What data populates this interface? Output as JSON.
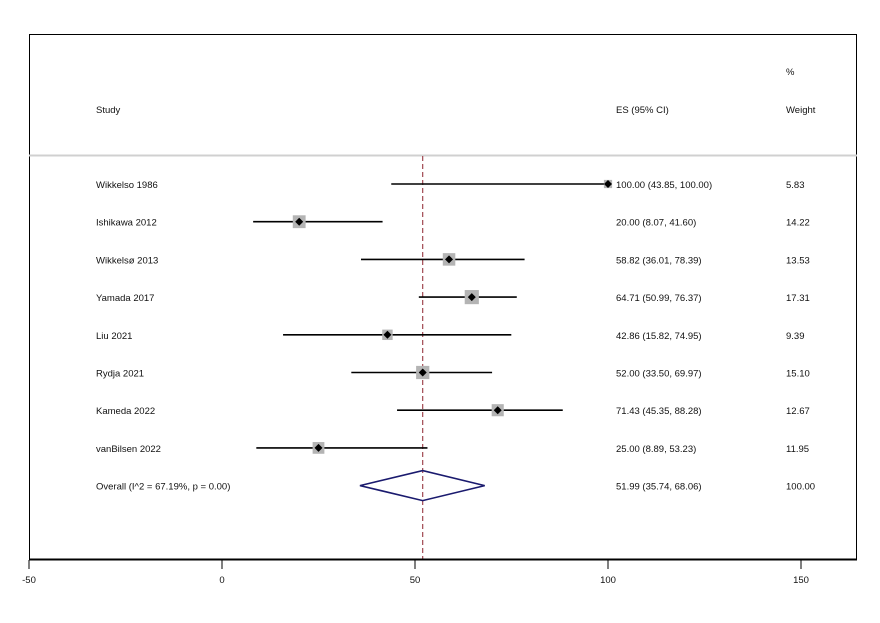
{
  "chart_data": {
    "type": "forest",
    "headers": {
      "study": "Study",
      "es": "ES (95% CI)",
      "weight_line1": "%",
      "weight_line2": "Weight"
    },
    "studies": [
      {
        "name": "Wikkelso 1986",
        "es": 100.0,
        "lo": 43.85,
        "hi": 100.0,
        "es_text": "100.00 (43.85, 100.00)",
        "weight": 5.83,
        "weight_text": "5.83"
      },
      {
        "name": "Ishikawa 2012",
        "es": 20.0,
        "lo": 8.07,
        "hi": 41.6,
        "es_text": "20.00 (8.07, 41.60)",
        "weight": 14.22,
        "weight_text": "14.22"
      },
      {
        "name": "Wikkelsø 2013",
        "es": 58.82,
        "lo": 36.01,
        "hi": 78.39,
        "es_text": "58.82 (36.01, 78.39)",
        "weight": 13.53,
        "weight_text": "13.53"
      },
      {
        "name": "Yamada 2017",
        "es": 64.71,
        "lo": 50.99,
        "hi": 76.37,
        "es_text": "64.71 (50.99, 76.37)",
        "weight": 17.31,
        "weight_text": "17.31"
      },
      {
        "name": "Liu 2021",
        "es": 42.86,
        "lo": 15.82,
        "hi": 74.95,
        "es_text": "42.86 (15.82, 74.95)",
        "weight": 9.39,
        "weight_text": "9.39"
      },
      {
        "name": "Rydja 2021",
        "es": 52.0,
        "lo": 33.5,
        "hi": 69.97,
        "es_text": "52.00 (33.50, 69.97)",
        "weight": 15.1,
        "weight_text": "15.10"
      },
      {
        "name": "Kameda 2022",
        "es": 71.43,
        "lo": 45.35,
        "hi": 88.28,
        "es_text": "71.43 (45.35, 88.28)",
        "weight": 12.67,
        "weight_text": "12.67"
      },
      {
        "name": "vanBilsen 2022",
        "es": 25.0,
        "lo": 8.89,
        "hi": 53.23,
        "es_text": "25.00 (8.89, 53.23)",
        "weight": 11.95,
        "weight_text": "11.95"
      }
    ],
    "overall": {
      "label": "Overall  (I^2 = 67.19%, p = 0.00)",
      "es": 51.99,
      "lo": 35.74,
      "hi": 68.06,
      "es_text": "51.99 (35.74, 68.06)",
      "weight_text": "100.00"
    },
    "x_axis": {
      "range": [
        -50,
        165
      ],
      "ticks": [
        -50,
        0,
        50,
        100,
        150
      ],
      "tick_labels": [
        "-50",
        "0",
        "50",
        "100",
        "150"
      ]
    },
    "reference_line": 51.99,
    "colors": {
      "ci_line": "#000000",
      "weight_box": "#b4b4b4",
      "point": "#000000",
      "diamond": "#1a1a6e",
      "reference_line": "#a04850",
      "header_divider": "#d0d0d0",
      "frame": "#000000"
    }
  }
}
